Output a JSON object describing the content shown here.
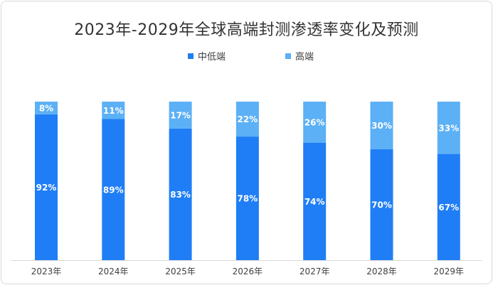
{
  "chart_data": {
    "type": "bar",
    "stacked": true,
    "title": "2023年-2029年全球高端封测渗透率变化及预测",
    "categories": [
      "2023年",
      "2024年",
      "2025年",
      "2026年",
      "2027年",
      "2028年",
      "2029年"
    ],
    "series": [
      {
        "name": "中低端",
        "color": "#1f7ef5",
        "values": [
          92,
          89,
          83,
          78,
          74,
          70,
          67
        ],
        "labels": [
          "92%",
          "89%",
          "83%",
          "78%",
          "74%",
          "70%",
          "67%"
        ]
      },
      {
        "name": "高端",
        "color": "#5cb0f5",
        "values": [
          8,
          11,
          17,
          22,
          26,
          30,
          33
        ],
        "labels": [
          "8%",
          "11%",
          "17%",
          "22%",
          "26%",
          "30%",
          "33%"
        ]
      }
    ],
    "ylim": [
      0,
      100
    ],
    "legend": "top",
    "grid": false
  }
}
